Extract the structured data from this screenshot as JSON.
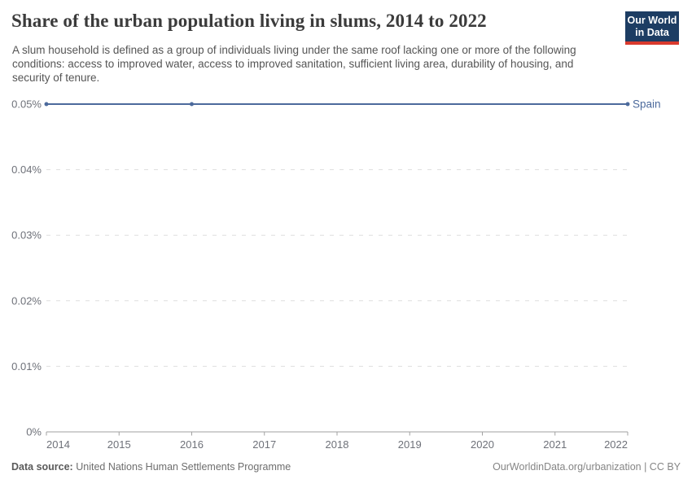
{
  "header": {
    "title": "Share of the urban population living in slums, 2014 to 2022",
    "subtitle": "A slum household is defined as a group of individuals living under the same roof lacking one or more of the following conditions: access to improved water, access to improved sanitation, sufficient living area, durability of housing, and security of tenure.",
    "logo": {
      "line1": "Our World",
      "line2": "in Data",
      "bg_color": "#1d3d63",
      "bar_color": "#d93a2d"
    }
  },
  "chart_data": {
    "type": "line",
    "title": "Share of the urban population living in slums, 2014 to 2022",
    "xlabel": "",
    "ylabel": "",
    "unit": "%",
    "xlim": [
      2014,
      2022
    ],
    "ylim": [
      0,
      0.05
    ],
    "grid": "dashed-horizontal",
    "legend_position": "end-of-line",
    "xticks": [
      2014,
      2015,
      2016,
      2017,
      2018,
      2019,
      2020,
      2021,
      2022
    ],
    "yticks": [
      {
        "value": 0,
        "label": "0%"
      },
      {
        "value": 0.01,
        "label": "0.01%"
      },
      {
        "value": 0.02,
        "label": "0.02%"
      },
      {
        "value": 0.03,
        "label": "0.03%"
      },
      {
        "value": 0.04,
        "label": "0.04%"
      },
      {
        "value": 0.05,
        "label": "0.05%"
      }
    ],
    "series": [
      {
        "name": "Spain",
        "color": "#4c6a9c",
        "points": [
          {
            "x": 2014,
            "y": 0.05
          },
          {
            "x": 2016,
            "y": 0.05
          },
          {
            "x": 2022,
            "y": 0.05
          }
        ]
      }
    ]
  },
  "footer": {
    "source_label": "Data source:",
    "source_value": "United Nations Human Settlements Programme",
    "credit": "OurWorldinData.org/urbanization | CC BY"
  },
  "colors": {
    "accent": "#4c6a9c",
    "grid": "#dedede",
    "axis": "#a1a1a1",
    "tick_text": "#6e7179",
    "title_text": "#3b3b3b",
    "subtitle_text": "#555555"
  }
}
